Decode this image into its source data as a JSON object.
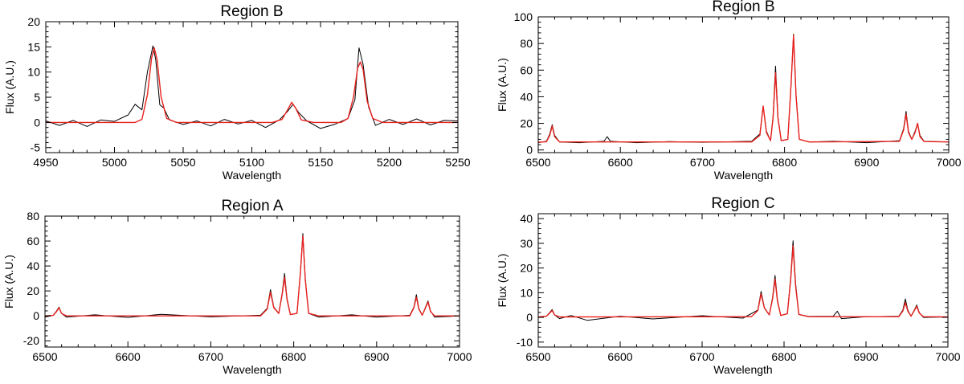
{
  "figure": {
    "panels_order": [
      "top-left",
      "top-right",
      "bottom-left",
      "bottom-right"
    ]
  },
  "chart_data": [
    {
      "type": "line",
      "title": "Region B",
      "xlabel": "Wavelength",
      "ylabel": "Flux (A.U.)",
      "xlim": [
        4950,
        5250
      ],
      "ylim": [
        -6,
        20
      ],
      "xticks": [
        4950,
        5000,
        5050,
        5100,
        5150,
        5200,
        5250
      ],
      "yticks": [
        -5,
        0,
        5,
        10,
        15,
        20
      ],
      "series": [
        {
          "role": "observed",
          "color": "#000000",
          "x": [
            4950,
            4960,
            4970,
            4980,
            4990,
            5000,
            5010,
            5015,
            5020,
            5024,
            5028,
            5030,
            5033,
            5036,
            5040,
            5050,
            5060,
            5070,
            5080,
            5090,
            5100,
            5110,
            5120,
            5126,
            5130,
            5134,
            5140,
            5150,
            5160,
            5170,
            5175,
            5178,
            5181,
            5185,
            5190,
            5200,
            5210,
            5220,
            5230,
            5240,
            5250
          ],
          "y": [
            0.3,
            -0.6,
            0.4,
            -0.8,
            0.5,
            0.2,
            1.5,
            3.6,
            2.5,
            10,
            15.2,
            12.5,
            3.5,
            2.8,
            0.5,
            -0.4,
            0.3,
            -0.7,
            0.6,
            -0.3,
            0.4,
            -1.0,
            0.5,
            2.2,
            3.6,
            2.0,
            0.3,
            -1.2,
            -0.4,
            0.8,
            4.5,
            14.8,
            11.5,
            3.0,
            -0.6,
            0.6,
            -0.4,
            0.7,
            -0.5,
            0.4,
            0.3
          ]
        },
        {
          "role": "model",
          "color": "#e8221e",
          "x": [
            4950,
            5015,
            5020,
            5024,
            5027,
            5029,
            5031,
            5034,
            5038,
            5045,
            5115,
            5122,
            5126,
            5129,
            5132,
            5136,
            5145,
            5165,
            5170,
            5174,
            5177,
            5179,
            5181,
            5184,
            5188,
            5195,
            5250
          ],
          "y": [
            0,
            0,
            0.6,
            5.5,
            12.8,
            14.8,
            12.5,
            5.0,
            0.8,
            0,
            0,
            0.6,
            2.5,
            4.0,
            2.8,
            0.5,
            0,
            0,
            0.8,
            5.0,
            10.8,
            12.0,
            10.5,
            4.2,
            0.8,
            0,
            0
          ]
        }
      ]
    },
    {
      "type": "line",
      "title": "Region B",
      "xlabel": "Wavelength",
      "ylabel": "Flux (A.U.)",
      "xlim": [
        6500,
        7000
      ],
      "ylim": [
        -2,
        100
      ],
      "xticks": [
        6500,
        6600,
        6700,
        6800,
        6900,
        7000
      ],
      "yticks": [
        0,
        20,
        40,
        60,
        80,
        100
      ],
      "series": [
        {
          "role": "observed",
          "color": "#000000",
          "x": [
            6500,
            6510,
            6514,
            6517,
            6520,
            6526,
            6550,
            6580,
            6584,
            6588,
            6620,
            6660,
            6700,
            6760,
            6770,
            6774,
            6778,
            6783,
            6786,
            6789,
            6792,
            6796,
            6804,
            6808,
            6811,
            6814,
            6818,
            6830,
            6860,
            6900,
            6940,
            6945,
            6948,
            6951,
            6955,
            6959,
            6962,
            6965,
            6970,
            7000
          ],
          "y": [
            5.5,
            6.5,
            12,
            19,
            11,
            6.0,
            5.5,
            6.5,
            10,
            6.5,
            5.5,
            6.3,
            5.8,
            6.5,
            12,
            33,
            14,
            7,
            25,
            63,
            25,
            7,
            8,
            50,
            87,
            42,
            8,
            6.0,
            6.5,
            5.5,
            7,
            16,
            29,
            14,
            8,
            14,
            20,
            11,
            6.5,
            6.0
          ]
        },
        {
          "role": "model",
          "color": "#e8221e",
          "x": [
            6500,
            6510,
            6514,
            6517,
            6520,
            6526,
            6560,
            6760,
            6770,
            6774,
            6778,
            6783,
            6786,
            6789,
            6792,
            6796,
            6804,
            6808,
            6811,
            6814,
            6818,
            6830,
            6940,
            6945,
            6948,
            6951,
            6955,
            6959,
            6962,
            6965,
            6970,
            7000
          ],
          "y": [
            5.8,
            6.2,
            11,
            18,
            10,
            6.0,
            6.0,
            6.0,
            11,
            33,
            13,
            7,
            24,
            58,
            24,
            7,
            8,
            50,
            86,
            41,
            8,
            6.0,
            6.5,
            15,
            27,
            13,
            8,
            13,
            20,
            10,
            6.3,
            6.0
          ]
        }
      ]
    },
    {
      "type": "line",
      "title": "Region A",
      "xlabel": "Wavelength",
      "ylabel": "Flux (A.U.)",
      "xlim": [
        6500,
        7000
      ],
      "ylim": [
        -25,
        80
      ],
      "xticks": [
        6500,
        6600,
        6700,
        6800,
        6900,
        7000
      ],
      "yticks": [
        -20,
        0,
        20,
        40,
        60,
        80
      ],
      "series": [
        {
          "role": "observed",
          "color": "#000000",
          "x": [
            6500,
            6510,
            6514,
            6517,
            6520,
            6526,
            6560,
            6600,
            6640,
            6700,
            6760,
            6768,
            6772,
            6776,
            6782,
            6786,
            6789,
            6792,
            6796,
            6804,
            6808,
            6811,
            6814,
            6818,
            6830,
            6870,
            6900,
            6940,
            6945,
            6948,
            6951,
            6955,
            6959,
            6962,
            6965,
            6970,
            7000
          ],
          "y": [
            -1,
            0.5,
            4,
            7,
            2,
            -1,
            0.8,
            -1.2,
            1.2,
            -0.8,
            0.5,
            6,
            21,
            7,
            2,
            18,
            34,
            14,
            1,
            2,
            35,
            66,
            30,
            2,
            -1,
            0.8,
            -1,
            0.5,
            7,
            17,
            6,
            0.5,
            7,
            12,
            4,
            -1,
            0
          ]
        },
        {
          "role": "model",
          "color": "#e8221e",
          "x": [
            6500,
            6510,
            6514,
            6517,
            6520,
            6526,
            6760,
            6768,
            6772,
            6776,
            6782,
            6786,
            6789,
            6792,
            6796,
            6804,
            6808,
            6811,
            6814,
            6818,
            6830,
            6940,
            6945,
            6948,
            6951,
            6955,
            6959,
            6962,
            6965,
            6970,
            7000
          ],
          "y": [
            0,
            0.4,
            3.5,
            6.5,
            2,
            0,
            0,
            5.5,
            19,
            6.5,
            2,
            17,
            31,
            13,
            1,
            2,
            34,
            64,
            29,
            2,
            0,
            0,
            6.5,
            15,
            5.5,
            0.5,
            6.5,
            11,
            3.5,
            0,
            0
          ]
        }
      ]
    },
    {
      "type": "line",
      "title": "Region C",
      "xlabel": "Wavelength",
      "ylabel": "Flux (A.U.)",
      "xlim": [
        6500,
        7000
      ],
      "ylim": [
        -12,
        42
      ],
      "xticks": [
        6500,
        6600,
        6700,
        6800,
        6900,
        7000
      ],
      "yticks": [
        -10,
        0,
        10,
        20,
        30,
        40
      ],
      "series": [
        {
          "role": "observed",
          "color": "#000000",
          "x": [
            6500,
            6510,
            6514,
            6517,
            6520,
            6526,
            6540,
            6560,
            6600,
            6640,
            6700,
            6750,
            6768,
            6772,
            6776,
            6782,
            6786,
            6789,
            6792,
            6796,
            6804,
            6808,
            6811,
            6814,
            6818,
            6830,
            6860,
            6865,
            6870,
            6900,
            6940,
            6945,
            6948,
            6951,
            6955,
            6959,
            6962,
            6965,
            6970,
            7000
          ],
          "y": [
            0,
            0.5,
            2,
            3.2,
            1,
            -0.5,
            0.8,
            -1.2,
            0.5,
            -0.6,
            0.7,
            -0.3,
            3,
            10.5,
            4,
            1,
            8,
            17,
            7,
            0.8,
            1.5,
            16,
            31,
            14,
            1.2,
            0.4,
            0.5,
            2.5,
            -0.5,
            0.3,
            0.5,
            3,
            7.5,
            3,
            0.5,
            3,
            5,
            2,
            0,
            0.2
          ]
        },
        {
          "role": "model",
          "color": "#e8221e",
          "x": [
            6500,
            6510,
            6514,
            6517,
            6520,
            6526,
            6760,
            6768,
            6772,
            6776,
            6782,
            6786,
            6789,
            6792,
            6796,
            6804,
            6808,
            6811,
            6814,
            6818,
            6830,
            6940,
            6945,
            6948,
            6951,
            6955,
            6959,
            6962,
            6965,
            6970,
            7000
          ],
          "y": [
            0.2,
            0.5,
            1.8,
            2.8,
            1,
            0.2,
            0.3,
            2.8,
            9.5,
            3.8,
            1,
            7.5,
            15.5,
            6.5,
            0.8,
            1.5,
            15,
            29,
            13,
            1.2,
            0.3,
            0.3,
            2.6,
            6,
            2.6,
            0.5,
            2.8,
            4.5,
            1.8,
            0.3,
            0.2
          ]
        }
      ]
    }
  ]
}
